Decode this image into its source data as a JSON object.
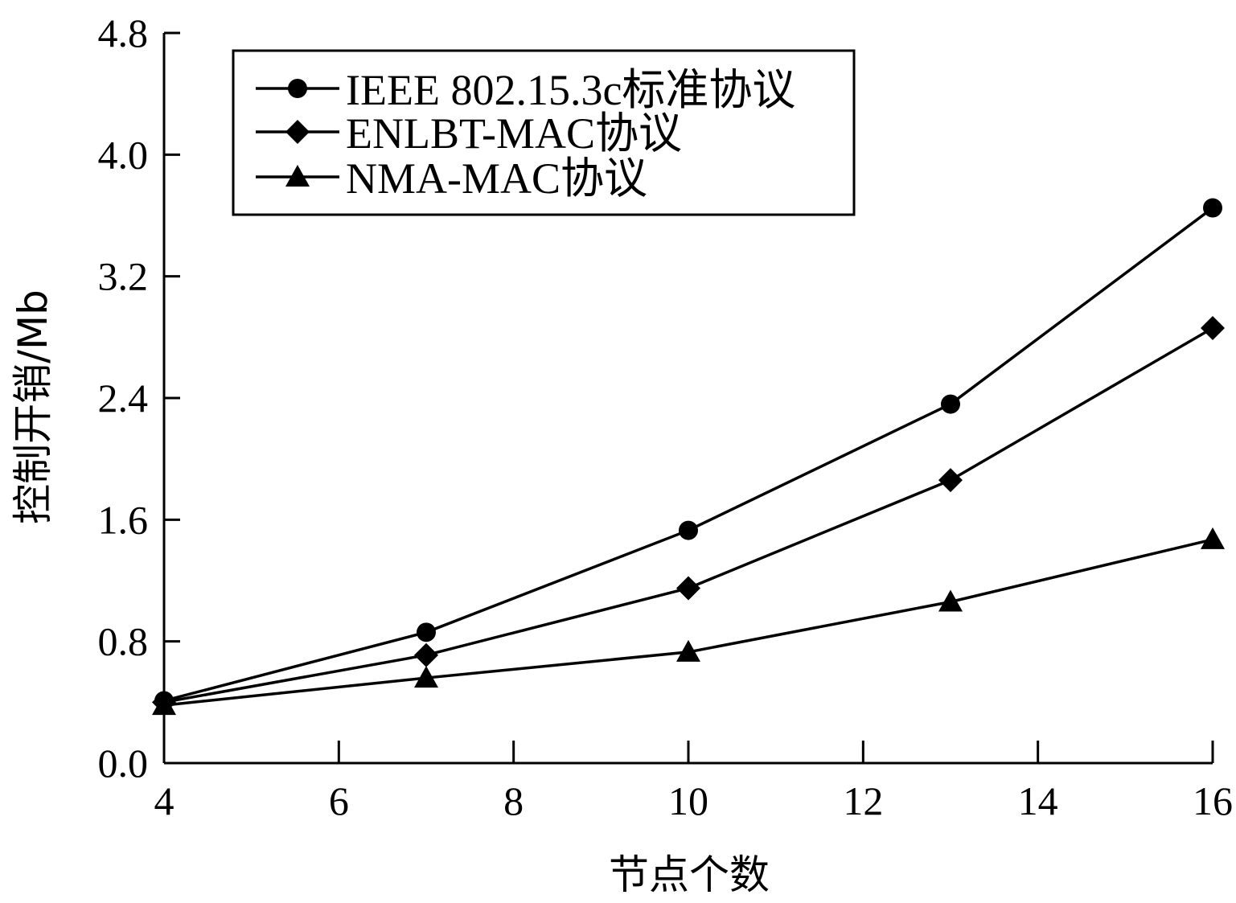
{
  "chart_data": {
    "type": "line",
    "title": "",
    "xlabel": "节点个数",
    "ylabel": "控制开销/Mb",
    "xlim": [
      4,
      16
    ],
    "ylim": [
      0.0,
      4.8
    ],
    "xticks": [
      "4",
      "6",
      "8",
      "10",
      "12",
      "14",
      "16"
    ],
    "yticks": [
      "0.0",
      "0.8",
      "1.6",
      "2.4",
      "3.2",
      "4.0",
      "4.8"
    ],
    "x": [
      4,
      7,
      10,
      13,
      16
    ],
    "legend_position": "top-left",
    "grid": false,
    "series": [
      {
        "name": "IEEE 802.15.3c标准协议",
        "marker": "circle",
        "values": [
          0.41,
          0.86,
          1.53,
          2.36,
          3.65
        ]
      },
      {
        "name": "ENLBT-MAC协议",
        "marker": "diamond",
        "values": [
          0.4,
          0.71,
          1.15,
          1.86,
          2.86
        ]
      },
      {
        "name": "NMA-MAC协议",
        "marker": "triangle",
        "values": [
          0.38,
          0.56,
          0.73,
          1.06,
          1.47
        ]
      }
    ]
  }
}
